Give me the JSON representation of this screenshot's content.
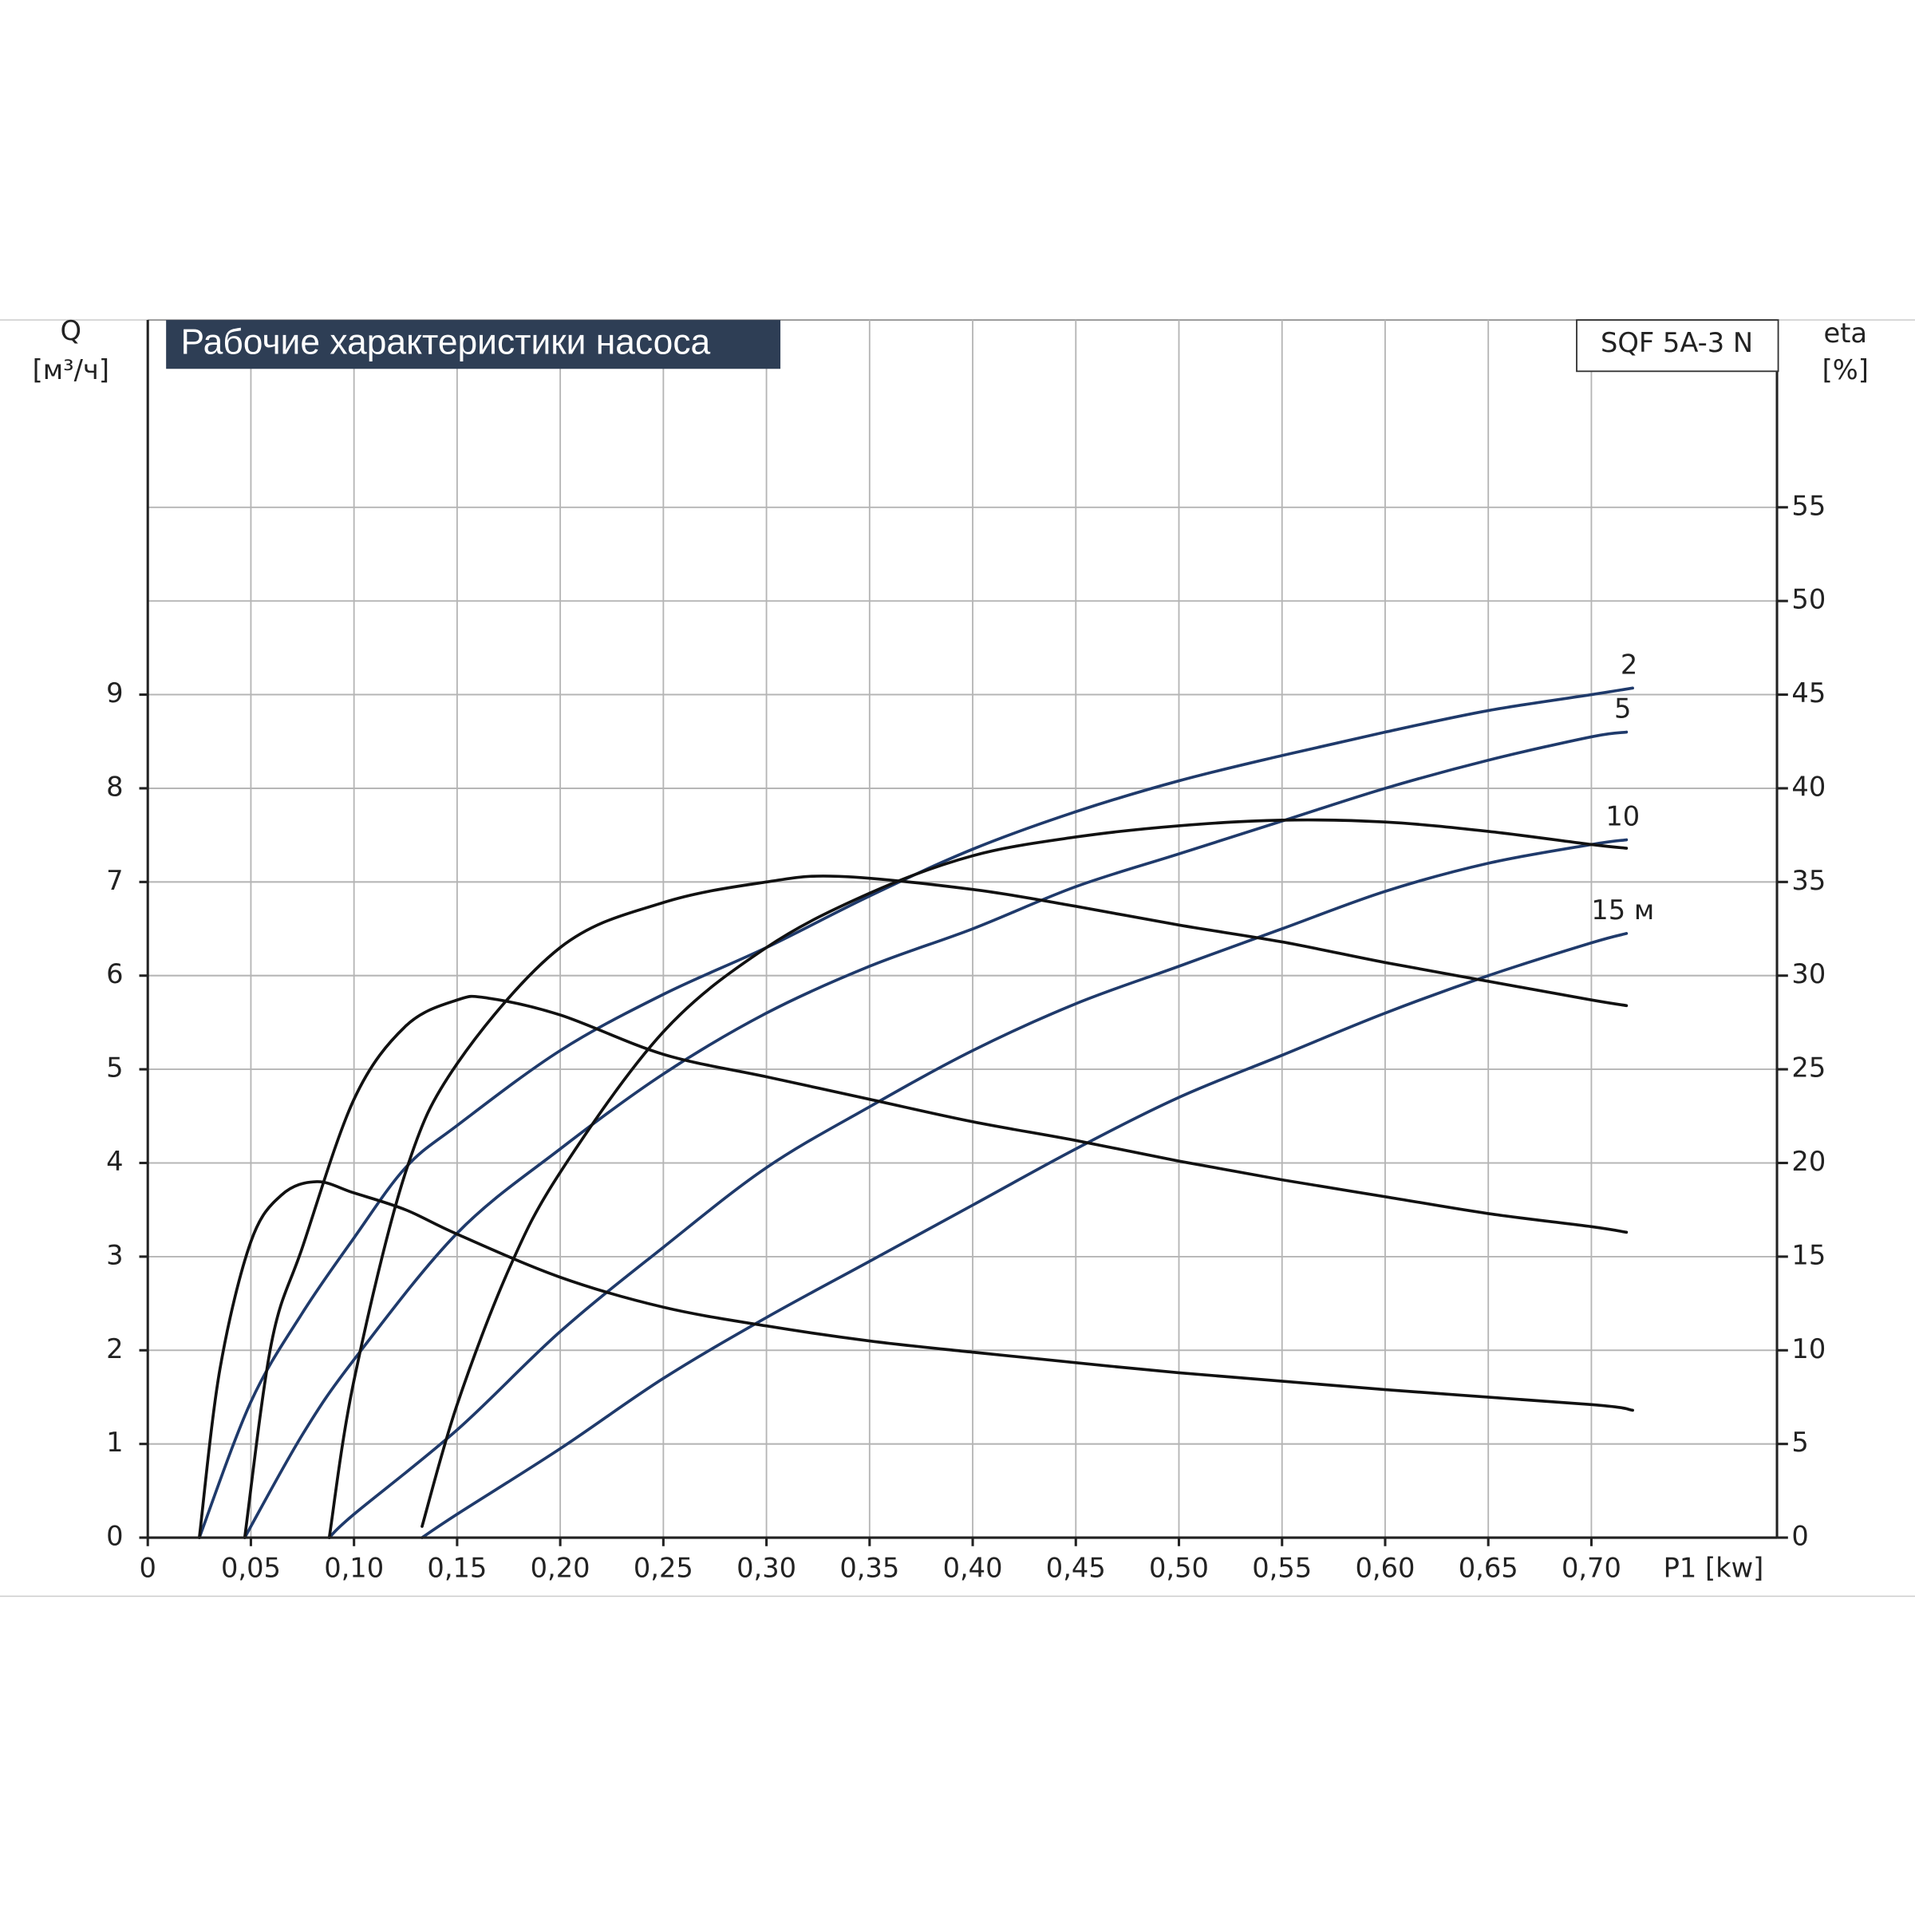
{
  "chart_data": {
    "type": "line",
    "title": "Рабочие характеристики насоса",
    "model": "SQF 5A-3 N",
    "y_label": "Q",
    "y_unit": "[м³/ч]",
    "y2_label": "eta",
    "y2_unit": "[%]",
    "x_label": "P1 [kw]",
    "xlim": [
      0,
      0.79
    ],
    "ylim": [
      0,
      13
    ],
    "y2lim": [
      0,
      65
    ],
    "xticks": [
      0,
      {
        "value": 0.05,
        "label": "0,05"
      },
      {
        "value": 0.1,
        "label": "0,10"
      },
      {
        "value": 0.15,
        "label": "0,15"
      },
      {
        "value": 0.2,
        "label": "0,20"
      },
      {
        "value": 0.25,
        "label": "0,25"
      },
      {
        "value": 0.3,
        "label": "0,30"
      },
      {
        "value": 0.35,
        "label": "0,35"
      },
      {
        "value": 0.4,
        "label": "0,40"
      },
      {
        "value": 0.45,
        "label": "0,45"
      },
      {
        "value": 0.5,
        "label": "0,50"
      },
      {
        "value": 0.55,
        "label": "0,55"
      },
      {
        "value": 0.6,
        "label": "0,60"
      },
      {
        "value": 0.65,
        "label": "0,65"
      },
      {
        "value": 0.7,
        "label": "0,70"
      }
    ],
    "yticks": [
      0,
      1,
      2,
      3,
      4,
      5,
      6,
      7,
      8,
      9
    ],
    "y2ticks": [
      0,
      5,
      10,
      15,
      20,
      25,
      30,
      35,
      40,
      45,
      50,
      55
    ],
    "grid": true,
    "series": [
      {
        "name": "2",
        "color": "#1f3a6b",
        "x": [
          0.025,
          0.05,
          0.075,
          0.1,
          0.125,
          0.15,
          0.2,
          0.25,
          0.3,
          0.35,
          0.4,
          0.45,
          0.5,
          0.55,
          0.6,
          0.65,
          0.7,
          0.72
        ],
        "values": [
          0,
          1.45,
          2.4,
          3.2,
          3.95,
          4.4,
          5.2,
          5.8,
          6.3,
          6.85,
          7.35,
          7.75,
          8.08,
          8.35,
          8.6,
          8.83,
          9.0,
          9.07
        ]
      },
      {
        "name": "5",
        "color": "#1f3a6b",
        "x": [
          0.047,
          0.075,
          0.1,
          0.15,
          0.2,
          0.25,
          0.3,
          0.35,
          0.4,
          0.45,
          0.5,
          0.55,
          0.6,
          0.65,
          0.7,
          0.717
        ],
        "values": [
          0,
          1.1,
          1.9,
          3.25,
          4.15,
          4.95,
          5.6,
          6.1,
          6.5,
          6.95,
          7.3,
          7.65,
          8.0,
          8.3,
          8.55,
          8.6
        ]
      },
      {
        "name": "10",
        "color": "#1f3a6b",
        "x": [
          0.088,
          0.1,
          0.15,
          0.2,
          0.25,
          0.3,
          0.35,
          0.4,
          0.45,
          0.5,
          0.55,
          0.6,
          0.65,
          0.7,
          0.717
        ],
        "values": [
          0,
          0.25,
          1.15,
          2.2,
          3.1,
          3.95,
          4.6,
          5.2,
          5.7,
          6.1,
          6.5,
          6.9,
          7.2,
          7.4,
          7.45
        ]
      },
      {
        "name": "15 м",
        "color": "#1f3a6b",
        "x": [
          0.133,
          0.15,
          0.2,
          0.25,
          0.3,
          0.35,
          0.4,
          0.45,
          0.5,
          0.55,
          0.6,
          0.65,
          0.7,
          0.717
        ],
        "values": [
          0,
          0.25,
          0.95,
          1.7,
          2.35,
          2.95,
          3.55,
          4.15,
          4.7,
          5.15,
          5.6,
          6.0,
          6.35,
          6.45
        ]
      },
      {
        "color": "#111111",
        "axis": "y2",
        "x": [
          0.025,
          0.035,
          0.05,
          0.065,
          0.082,
          0.1,
          0.125,
          0.15,
          0.2,
          0.25,
          0.3,
          0.35,
          0.4,
          0.5,
          0.6,
          0.7,
          0.72
        ],
        "values": [
          0,
          9,
          15.8,
          18.3,
          19.0,
          18.4,
          17.5,
          16.2,
          13.9,
          12.3,
          11.3,
          10.5,
          9.9,
          8.8,
          7.9,
          7.1,
          6.8
        ]
      },
      {
        "color": "#111111",
        "axis": "y2",
        "x": [
          0.047,
          0.06,
          0.075,
          0.1,
          0.125,
          0.15,
          0.165,
          0.2,
          0.25,
          0.3,
          0.35,
          0.4,
          0.45,
          0.5,
          0.55,
          0.6,
          0.65,
          0.7,
          0.717
        ],
        "values": [
          0,
          10.4,
          15.5,
          23.4,
          27.3,
          28.7,
          28.8,
          27.9,
          25.8,
          24.6,
          23.4,
          22.2,
          21.2,
          20.1,
          19.1,
          18.2,
          17.3,
          16.6,
          16.3
        ]
      },
      {
        "color": "#111111",
        "axis": "y2",
        "x": [
          0.088,
          0.1,
          0.125,
          0.15,
          0.2,
          0.25,
          0.3,
          0.335,
          0.4,
          0.45,
          0.5,
          0.55,
          0.6,
          0.65,
          0.7,
          0.717
        ],
        "values": [
          0,
          8.4,
          19.5,
          25.3,
          31.5,
          33.9,
          35.0,
          35.3,
          34.6,
          33.7,
          32.7,
          31.8,
          30.7,
          29.7,
          28.7,
          28.4
        ]
      },
      {
        "color": "#111111",
        "axis": "y2",
        "x": [
          0.133,
          0.15,
          0.175,
          0.2,
          0.25,
          0.3,
          0.35,
          0.4,
          0.45,
          0.5,
          0.55,
          0.6,
          0.65,
          0.7,
          0.717
        ],
        "values": [
          0.6,
          7.1,
          14.3,
          19.5,
          27.0,
          31.5,
          34.4,
          36.4,
          37.4,
          38.0,
          38.3,
          38.2,
          37.7,
          37.0,
          36.8
        ]
      }
    ]
  }
}
